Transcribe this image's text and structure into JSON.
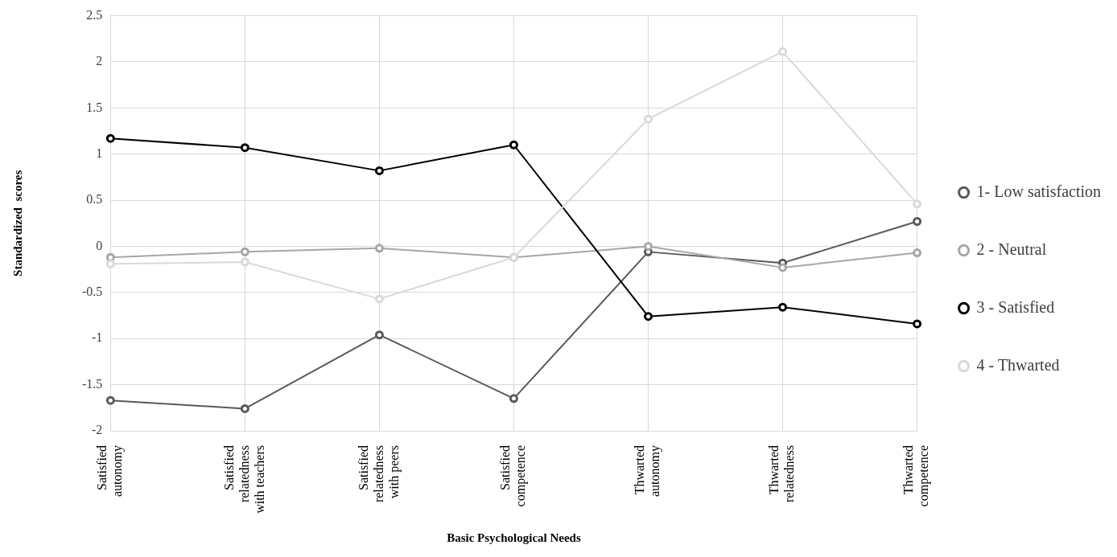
{
  "chart_data": {
    "type": "line",
    "xlabel": "Basic Psychological Needs",
    "ylabel": "Standardized  scores",
    "categories": [
      "Satisfied autonomy",
      "Satisfied relatedness with teachers",
      "Satisfied relatedness with peers",
      "Satisfied competence",
      "Thwarted autonomy",
      "Thwarted relatedness",
      "Thwarted competence"
    ],
    "series": [
      {
        "name": "1- Low satisfaction",
        "color": "#595959",
        "values": [
          -1.67,
          -1.76,
          -0.96,
          -1.65,
          -0.06,
          -0.18,
          0.27
        ]
      },
      {
        "name": "2 - Neutral",
        "color": "#a6a6a6",
        "values": [
          -0.12,
          -0.06,
          -0.02,
          -0.12,
          0,
          -0.23,
          -0.07
        ]
      },
      {
        "name": "3 - Satisfied",
        "color": "#000000",
        "values": [
          1.17,
          1.07,
          0.82,
          1.1,
          -0.76,
          -0.66,
          -0.84
        ]
      },
      {
        "name": "4 - Thwarted",
        "color": "#d9d9d9",
        "values": [
          -0.19,
          -0.17,
          -0.57,
          -0.12,
          1.38,
          2.11,
          0.46
        ]
      }
    ],
    "ylim": [
      -2,
      2.5
    ],
    "yticks": [
      -2,
      -1.5,
      -1,
      -0.5,
      0,
      0.5,
      1,
      1.5,
      2,
      2.5
    ],
    "grid": true,
    "legend": "right",
    "marker": "circle",
    "line_style": "solid"
  }
}
